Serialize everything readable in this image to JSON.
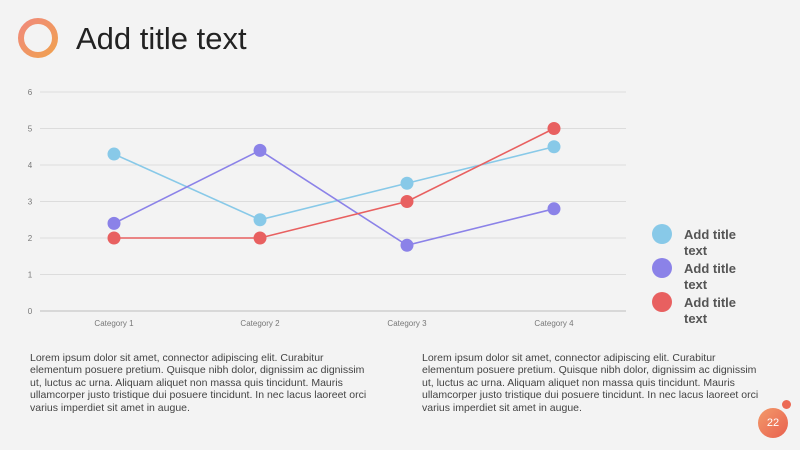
{
  "slide": {
    "title": "Add title text",
    "page_number": "22",
    "paragraph_left": "Lorem ipsum dolor sit amet, connector adipiscing elit. Curabitur elementum posuere pretium. Quisque nibh dolor, dignissim ac dignissim ut, luctus ac urna. Aliquam aliquet non massa quis tincidunt. Mauris ullamcorper justo tristique dui posuere tincidunt. In nec lacus laoreet orci varius imperdiet sit amet in augue.",
    "paragraph_right": "Lorem ipsum dolor sit amet, connector adipiscing elit. Curabitur elementum posuere pretium. Quisque nibh dolor, dignissim ac dignissim ut, luctus ac urna. Aliquam aliquet non massa quis tincidunt. Mauris ullamcorper justo tristique dui posuere tincidunt. In nec lacus laoreet orci varius imperdiet sit amet in augue.",
    "logo_icon": "ring-logo-icon",
    "accent_gradient": [
      "#f6a05c",
      "#e8605f"
    ]
  },
  "chart_data": {
    "type": "line",
    "title": "",
    "xlabel": "",
    "ylabel": "",
    "categories": [
      "Category 1",
      "Category 2",
      "Category 3",
      "Category 4"
    ],
    "ylim": [
      0,
      6
    ],
    "yticks": [
      "0",
      "1",
      "2",
      "3",
      "4",
      "5",
      "6"
    ],
    "grid": true,
    "legend_position": "right",
    "series": [
      {
        "name": "Add title text",
        "color": "#88c9e8",
        "values": [
          4.3,
          2.5,
          3.5,
          4.5
        ]
      },
      {
        "name": "Add title text",
        "color": "#8b82e8",
        "values": [
          2.4,
          4.4,
          1.8,
          2.8
        ]
      },
      {
        "name": "Add title text",
        "color": "#e86060",
        "values": [
          2.0,
          2.0,
          3.0,
          5.0
        ]
      }
    ]
  }
}
